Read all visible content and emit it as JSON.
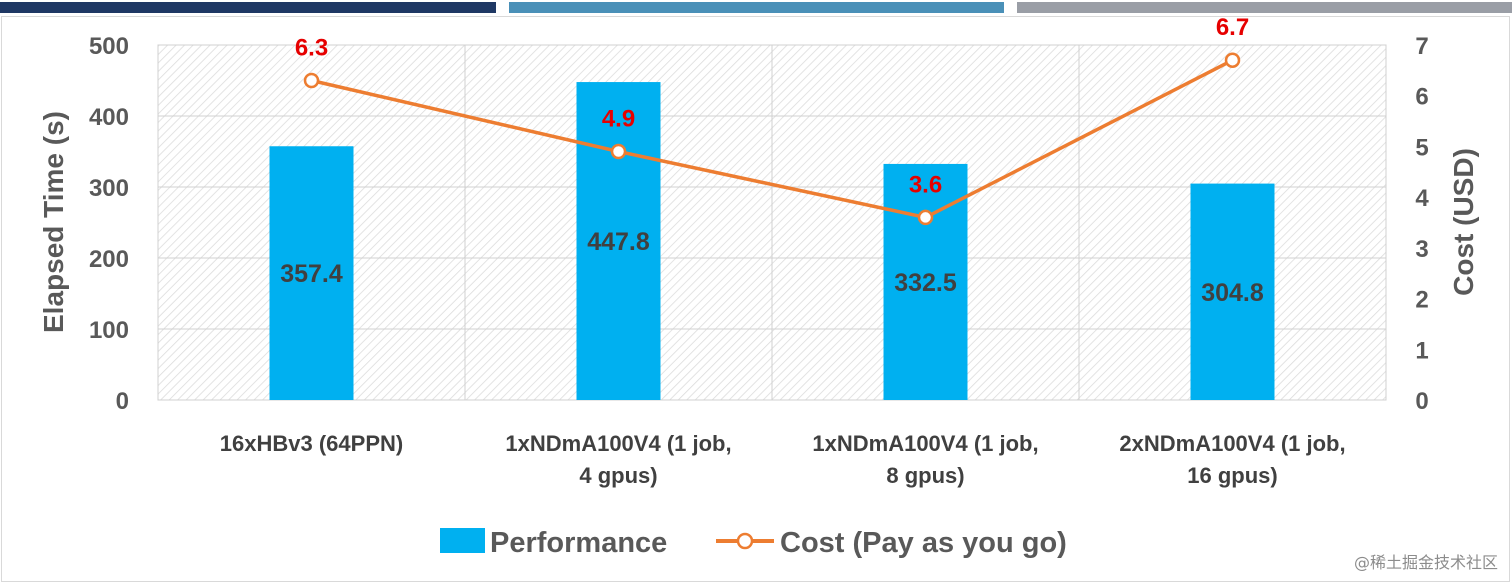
{
  "header_bars": [
    {
      "color": "#1f3864"
    },
    {
      "color": "#4a90b8"
    },
    {
      "color": "#9a9ea6"
    }
  ],
  "chart_data": {
    "type": "bar",
    "categories": [
      [
        "16xHBv3 (64PPN)"
      ],
      [
        "1xNDmA100V4 (1 job,",
        "4 gpus)"
      ],
      [
        "1xNDmA100V4 (1 job,",
        "8 gpus)"
      ],
      [
        "2xNDmA100V4 (1 job,",
        "16 gpus)"
      ]
    ],
    "series": [
      {
        "name": "Performance",
        "type": "bar",
        "axis": "left",
        "color": "#00b0f0",
        "values": [
          357.4,
          447.8,
          332.5,
          304.8
        ],
        "labels": [
          "357.4",
          "447.8",
          "332.5",
          "304.8"
        ]
      },
      {
        "name": "Cost (Pay as you go)",
        "type": "line",
        "axis": "right",
        "color": "#ed7d31",
        "values": [
          6.3,
          4.9,
          3.6,
          6.7
        ],
        "labels": [
          "6.3",
          "4.9",
          "3.6",
          "6.7"
        ]
      }
    ],
    "ylabel": "Elapsed Time (s)",
    "y2label": "Cost (USD)",
    "ylim": [
      0,
      500
    ],
    "y2lim": [
      0,
      7
    ],
    "yticks": [
      "0",
      "100",
      "200",
      "300",
      "400",
      "500"
    ],
    "y2ticks": [
      "0",
      "1",
      "2",
      "3",
      "4",
      "5",
      "6",
      "7"
    ],
    "grid": true,
    "legend_position": "bottom",
    "cost_label_color": "#e60000"
  },
  "watermark": "@稀土掘金技术社区"
}
